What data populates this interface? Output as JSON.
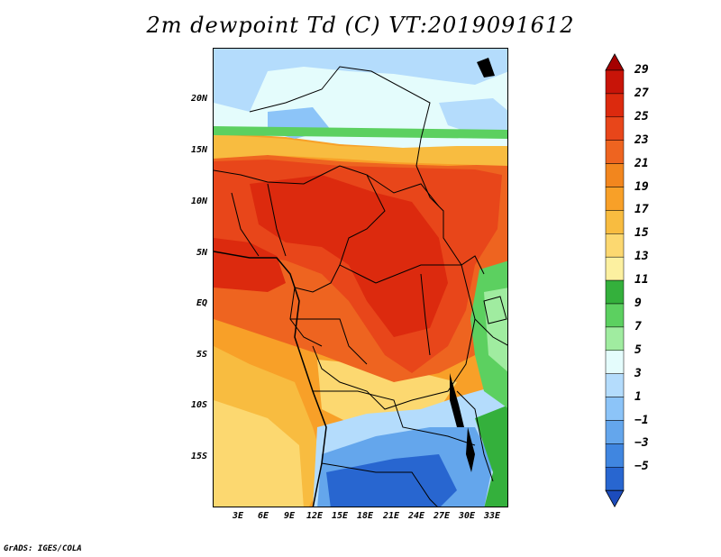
{
  "title": "2m dewpoint Td (C) VT:2019091612",
  "credit": "GrADS: IGES/COLA",
  "lat_ticks": [
    "20N",
    "15N",
    "10N",
    "5N",
    "EQ",
    "5S",
    "10S",
    "15S"
  ],
  "lon_ticks": [
    "3E",
    "6E",
    "9E",
    "12E",
    "15E",
    "18E",
    "21E",
    "24E",
    "27E",
    "30E",
    "33E"
  ],
  "colorbar": {
    "labels": [
      "29",
      "27",
      "25",
      "23",
      "21",
      "19",
      "17",
      "15",
      "13",
      "11",
      "9",
      "7",
      "5",
      "3",
      "1",
      "−1",
      "−3",
      "−5"
    ],
    "colors": [
      "#a50000",
      "#c81408",
      "#dc2a0e",
      "#e8461a",
      "#ee6420",
      "#f2861e",
      "#f8a028",
      "#f8bc40",
      "#fcd870",
      "#fcf0a0",
      "#34b03c",
      "#5cd060",
      "#a0eca0",
      "#e4fcfc",
      "#b4dcfc",
      "#8cc4f8",
      "#64a6ec",
      "#4086e0",
      "#2866d0",
      "#1c4cbc"
    ]
  }
}
